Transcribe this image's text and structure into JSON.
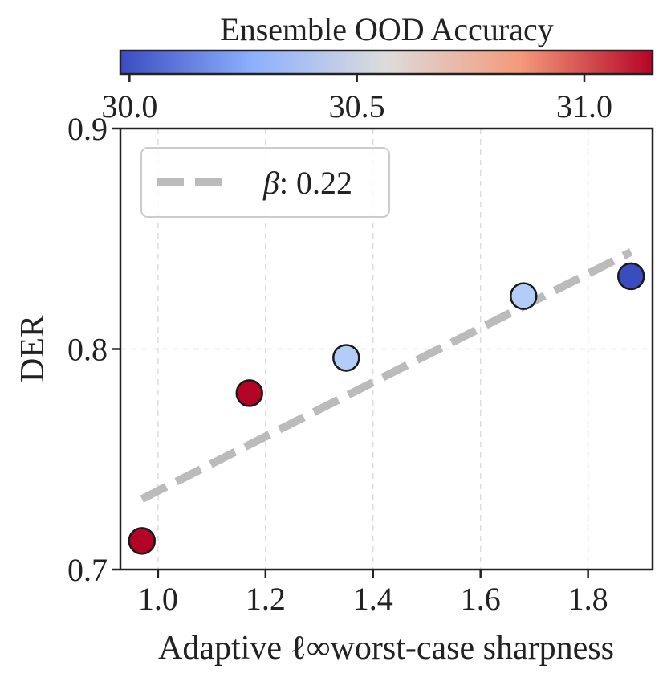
{
  "chart_data": {
    "type": "scatter",
    "title": "",
    "xlabel": "Adaptive ℓ∞worst-case sharpness",
    "ylabel": "DER",
    "xlim": [
      0.93,
      1.92
    ],
    "ylim": [
      0.7,
      0.9
    ],
    "xticks": [
      "1.0",
      "1.2",
      "1.4",
      "1.6",
      "1.8"
    ],
    "yticks": [
      "0.7",
      "0.8",
      "0.9"
    ],
    "grid": true,
    "points": [
      {
        "x": 0.97,
        "y": 0.713,
        "color": "#b40426"
      },
      {
        "x": 1.17,
        "y": 0.78,
        "color": "#b40426"
      },
      {
        "x": 1.35,
        "y": 0.796,
        "color": "#b4cdf8"
      },
      {
        "x": 1.68,
        "y": 0.824,
        "color": "#b4cdf8"
      },
      {
        "x": 1.88,
        "y": 0.833,
        "color": "#3b4cc0"
      }
    ],
    "fit_line": {
      "x": [
        0.97,
        1.88
      ],
      "y": [
        0.732,
        0.844
      ],
      "color": "#bbbbbb",
      "style": "dashed"
    },
    "legend": {
      "symbol": "β",
      "value": ": 0.22",
      "placement": "top-left"
    },
    "colorbar": {
      "title": "Ensemble OOD Accuracy",
      "range": [
        29.98,
        31.15
      ],
      "ticks": [
        "30.0",
        "30.5",
        "31.0"
      ],
      "colormap": "coolwarm",
      "stops": [
        "#3b4cc0",
        "#8db0fe",
        "#dddcdc",
        "#f49a7b",
        "#b40426"
      ],
      "placement": "top"
    }
  }
}
